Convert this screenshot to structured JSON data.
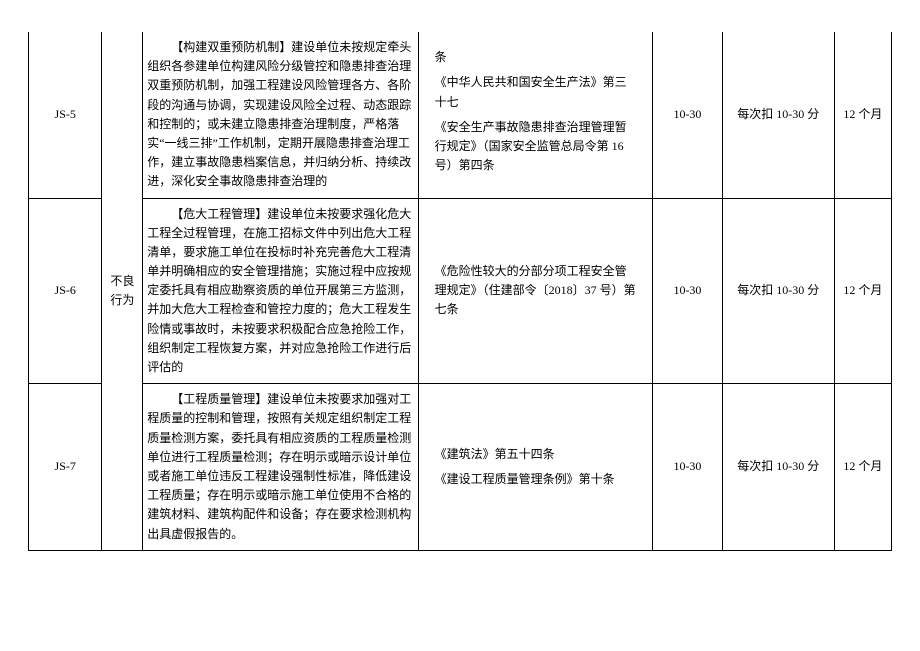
{
  "category_label": "不良行为",
  "rows": [
    {
      "code": "JS-5",
      "desc": "【构建双重预防机制】建设单位未按规定牵头组织各参建单位构建风险分级管控和隐患排查治理双重预防机制，加强工程建设风险管理各方、各阶段的沟通与协调，实现建设风险全过程、动态跟踪和控制的；或未建立隐患排查治理制度，严格落实“一线三排”工作机制，定期开展隐患排查治理工作，建立事故隐患档案信息，并归纳分析、持续改进，深化安全事故隐患排查治理的",
      "basis_tail": "条",
      "basis_lines": [
        "《中华人民共和国安全生产法》第三十七",
        "《安全生产事故隐患排查治理管理暂行规定》（国家安全监管总局令第 16 号）第四条"
      ],
      "score": "10-30",
      "deduct": "每次扣 10-30 分",
      "period": "12 个月"
    },
    {
      "code": "JS-6",
      "desc": "【危大工程管理】建设单位未按要求强化危大工程全过程管理，在施工招标文件中列出危大工程清单，要求施工单位在投标时补充完善危大工程清单并明确相应的安全管理措施；实施过程中应按规定委托具有相应勘察资质的单位开展第三方监测，并加大危大工程检查和管控力度的；危大工程发生险情或事故时，未按要求积极配合应急抢险工作，组织制定工程恢复方案，并对应急抢险工作进行后评估的",
      "basis_lines": [
        "《危险性较大的分部分项工程安全管理规定》（住建部令〔2018〕37 号）第七条"
      ],
      "score": "10-30",
      "deduct": "每次扣 10-30 分",
      "period": "12 个月"
    },
    {
      "code": "JS-7",
      "desc": "【工程质量管理】建设单位未按要求加强对工程质量的控制和管理，按照有关规定组织制定工程质量检测方案，委托具有相应资质的工程质量检测单位进行工程质量检测；存在明示或暗示设计单位或者施工单位违反工程建设强制性标准，降低建设工程质量；存在明示或暗示施工单位使用不合格的建筑材料、建筑构配件和设备；存在要求检测机构出具虚假报告的。",
      "basis_lines": [
        "《建筑法》第五十四条",
        "《建设工程质量管理条例》第十条"
      ],
      "score": "10-30",
      "deduct": "每次扣 10-30 分",
      "period": "12 个月"
    }
  ]
}
